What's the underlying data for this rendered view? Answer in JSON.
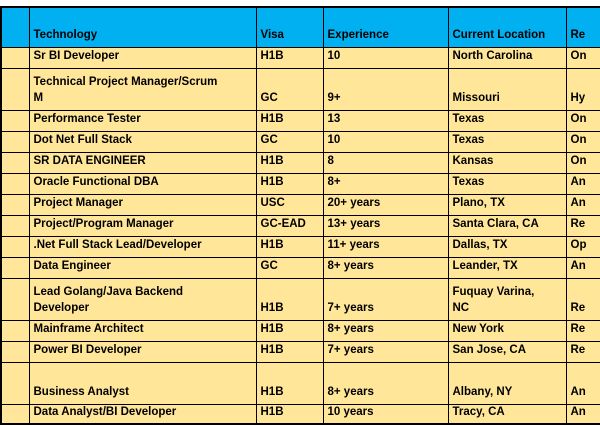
{
  "table": {
    "colors": {
      "header_bg": "#00B0F0",
      "row_bg": "#FFE699",
      "border": "#000000",
      "text": "#000000",
      "page_bg": "#FFFFFF"
    },
    "headers": {
      "row_select": "",
      "technology": "Technology",
      "visa": "Visa",
      "experience": "Experience",
      "location": "Current Location",
      "relocation": "Re"
    },
    "rows": [
      {
        "technology": "Sr BI Developer",
        "visa": "H1B",
        "experience": "10",
        "location": "North Carolina",
        "relocation": "On",
        "lines": 1
      },
      {
        "technology": "Technical Project Manager/Scrum\nM",
        "visa": "GC",
        "experience": "9+",
        "location": "Missouri",
        "relocation": "Hy",
        "lines": 2
      },
      {
        "technology": "Performance Tester",
        "visa": "H1B",
        "experience": "13",
        "location": "Texas",
        "relocation": "On",
        "lines": 1
      },
      {
        "technology": "Dot Net Full Stack",
        "visa": "GC",
        "experience": "10",
        "location": "Texas",
        "relocation": "On",
        "lines": 1
      },
      {
        "technology": "SR DATA ENGINEER",
        "visa": "H1B",
        "experience": "8",
        "location": "Kansas",
        "relocation": "On",
        "lines": 1
      },
      {
        "technology": "Oracle Functional DBA",
        "visa": "H1B",
        "experience": "8+",
        "location": "Texas",
        "relocation": "An",
        "lines": 1
      },
      {
        "technology": "Project Manager",
        "visa": "USC",
        "experience": "20+ years",
        "location": "Plano, TX",
        "relocation": "An",
        "lines": 1
      },
      {
        "technology": "Project/Program Manager",
        "visa": "GC-EAD",
        "experience": "13+ years",
        "location": "Santa Clara, CA",
        "relocation": "Re",
        "lines": 1
      },
      {
        "technology": ".Net Full Stack Lead/Developer",
        "visa": "H1B",
        "experience": "11+ years",
        "location": "Dallas, TX",
        "relocation": "Op",
        "lines": 1
      },
      {
        "technology": "Data Engineer",
        "visa": "GC",
        "experience": "8+ years",
        "location": "Leander, TX",
        "relocation": "An",
        "lines": 1
      },
      {
        "technology": "Lead Golang/Java Backend\nDeveloper",
        "visa": "H1B",
        "experience": "7+ years",
        "location": "Fuquay Varina,\nNC",
        "relocation": "Re",
        "lines": 2
      },
      {
        "technology": "Mainframe Architect",
        "visa": "H1B",
        "experience": "8+ years",
        "location": "New York",
        "relocation": "Re",
        "lines": 1
      },
      {
        "technology": "Power BI Developer",
        "visa": "H1B",
        "experience": "7+ years",
        "location": "San Jose, CA",
        "relocation": "Re",
        "lines": 1
      },
      {
        "technology": "Business Analyst",
        "visa": "H1B",
        "experience": "8+ years",
        "location": "Albany, NY",
        "relocation": "An",
        "lines": 2
      },
      {
        "technology": "Data Analyst/BI Developer",
        "visa": "H1B",
        "experience": "10 years",
        "location": "Tracy, CA",
        "relocation": "An",
        "lines": 1,
        "last": true
      }
    ]
  }
}
